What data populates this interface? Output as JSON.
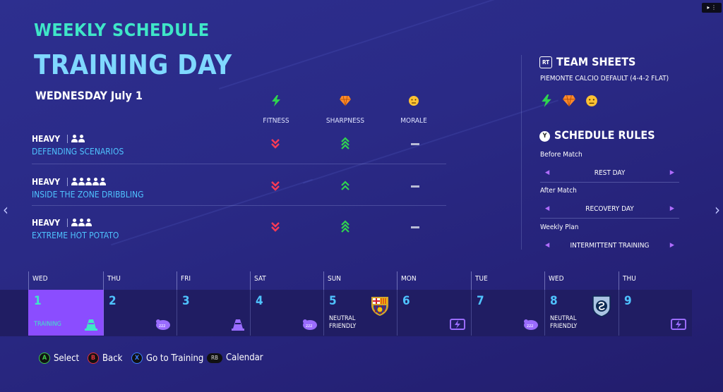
{
  "header": {
    "section": "WEEKLY SCHEDULE",
    "title": "TRAINING DAY",
    "date": "WEDNESDAY July 1"
  },
  "columns": [
    {
      "label": "FITNESS",
      "icon": "lightning-icon",
      "color": "#2fd44f"
    },
    {
      "label": "SHARPNESS",
      "icon": "diamond-icon",
      "color": "#ff8a2a"
    },
    {
      "label": "MORALE",
      "icon": "face-icon",
      "color": "#ffc233"
    }
  ],
  "drills": [
    {
      "intensity": "HEAVY",
      "name": "DEFENDING SCENARIOS",
      "players": 2,
      "fitness": "down",
      "sharpness": "up",
      "morale": "neutral"
    },
    {
      "intensity": "HEAVY",
      "name": "INSIDE THE ZONE DRIBBLING",
      "players": 5,
      "fitness": "down",
      "sharpness": "up",
      "morale": "neutral"
    },
    {
      "intensity": "HEAVY",
      "name": "EXTREME HOT POTATO",
      "players": 3,
      "fitness": "down",
      "sharpness": "up",
      "morale": "neutral"
    }
  ],
  "team_sheets": {
    "badge": "RT",
    "title": "TEAM SHEETS",
    "subtitle": "PIEMONTE CALCIO DEFAULT (4-4-2 FLAT)"
  },
  "schedule_rules": {
    "badge": "Y",
    "title": "SCHEDULE RULES",
    "rules": [
      {
        "label": "Before Match",
        "value": "REST DAY"
      },
      {
        "label": "After Match",
        "value": "RECOVERY DAY"
      },
      {
        "label": "Weekly Plan",
        "value": "INTERMITTENT TRAINING"
      }
    ]
  },
  "calendar": [
    {
      "day": "WED",
      "num": "1",
      "label": "TRAINING",
      "icon": "cone-icon",
      "selected": true
    },
    {
      "day": "THU",
      "num": "2",
      "label": "",
      "icon": "sleep-icon",
      "selected": false
    },
    {
      "day": "FRI",
      "num": "3",
      "label": "",
      "icon": "cone-icon",
      "selected": false
    },
    {
      "day": "SAT",
      "num": "4",
      "label": "",
      "icon": "sleep-icon",
      "selected": false
    },
    {
      "day": "SUN",
      "num": "5",
      "label": "NEUTRAL FRIENDLY",
      "icon": "fc-barcelona-crest",
      "selected": false
    },
    {
      "day": "MON",
      "num": "6",
      "label": "",
      "icon": "recovery-icon",
      "selected": false
    },
    {
      "day": "TUE",
      "num": "7",
      "label": "",
      "icon": "sleep-icon",
      "selected": false
    },
    {
      "day": "WED",
      "num": "8",
      "label": "NEUTRAL FRIENDLY",
      "icon": "sporting-kc-crest",
      "selected": false
    },
    {
      "day": "THU",
      "num": "9",
      "label": "",
      "icon": "recovery-icon",
      "selected": false
    }
  ],
  "hints": [
    {
      "button": "A",
      "label": "Select",
      "color": "#3ec84b"
    },
    {
      "button": "B",
      "label": "Back",
      "color": "#e2333c"
    },
    {
      "button": "X",
      "label": "Go to Training",
      "color": "#3a7dff"
    },
    {
      "button": "RB",
      "label": "Calendar",
      "color": "#dddddd"
    }
  ]
}
